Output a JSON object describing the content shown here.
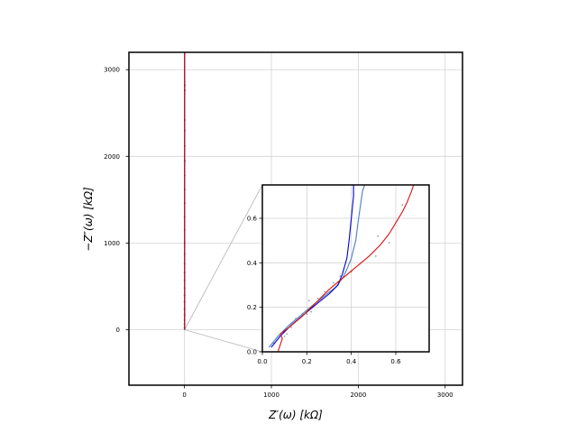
{
  "chart_data": [
    {
      "type": "scatter",
      "role": "main",
      "xlabel": "Z′(ω) [kΩ]",
      "ylabel": "−Z″(ω) [kΩ]",
      "xlim": [
        -640,
        3200
      ],
      "ylim": [
        -640,
        3200
      ],
      "xticks": [
        0,
        1000,
        2000,
        3000
      ],
      "yticks": [
        0,
        1000,
        2000,
        3000
      ],
      "xtick_labels": [
        "0",
        "1000",
        "2000",
        "3000"
      ],
      "ytick_labels": [
        "0",
        "1000",
        "2000",
        "3000"
      ],
      "grid": true,
      "series": [
        {
          "kind": "points",
          "color": "#555555",
          "x": [
            0.4,
            0.5,
            0.5,
            0.6,
            0.6,
            0.7,
            0.7,
            0.8,
            0.8,
            0.9,
            1.0,
            1.1,
            1.2,
            1.2,
            1.3,
            1.4,
            1.5,
            1.6,
            1.8,
            2.0,
            2.2,
            2.4,
            2.6,
            2.8
          ],
          "y": [
            20,
            60,
            110,
            170,
            240,
            320,
            400,
            480,
            570,
            660,
            760,
            870,
            1000,
            1150,
            1300,
            1460,
            1620,
            1780,
            1950,
            2120,
            2300,
            2420,
            2760,
            2820
          ]
        },
        {
          "kind": "line",
          "color": "#3a6db5",
          "x": [
            0.05,
            0.3,
            0.5,
            0.5,
            0.55
          ],
          "y": [
            0.0,
            0.3,
            0.6,
            1500,
            3200
          ]
        },
        {
          "kind": "line",
          "color": "#0000cc",
          "x": [
            0.06,
            0.3,
            0.42,
            0.42,
            0.45
          ],
          "y": [
            0.0,
            0.28,
            0.6,
            1500,
            3200
          ]
        },
        {
          "kind": "line",
          "color": "#dd1111",
          "x": [
            0.1,
            0.3,
            0.6,
            0.9,
            1.0
          ],
          "y": [
            0.0,
            0.3,
            0.6,
            1500,
            3200
          ]
        }
      ]
    },
    {
      "type": "line",
      "role": "inset",
      "xlim": [
        0.0,
        0.75
      ],
      "ylim": [
        0.0,
        0.75
      ],
      "xticks": [
        0.0,
        0.2,
        0.4,
        0.6
      ],
      "yticks": [
        0.0,
        0.2,
        0.4,
        0.6
      ],
      "xtick_labels": [
        "0.0",
        "0.2",
        "0.4",
        "0.6"
      ],
      "ytick_labels": [
        "0.0",
        "0.2",
        "0.4",
        "0.6"
      ],
      "grid": true,
      "series": [
        {
          "kind": "points",
          "color": "#999999",
          "x": [
            0.0,
            0.05,
            0.1,
            0.11,
            0.13,
            0.15,
            0.18,
            0.2,
            0.22,
            0.21,
            0.25,
            0.28,
            0.32,
            0.35,
            0.4,
            0.51,
            0.52,
            0.57,
            0.63
          ],
          "y": [
            0.18,
            0.04,
            0.07,
            0.08,
            0.11,
            0.15,
            0.17,
            0.17,
            0.18,
            0.23,
            0.24,
            0.27,
            0.31,
            0.34,
            0.36,
            0.43,
            0.52,
            0.49,
            0.66
          ]
        },
        {
          "kind": "line",
          "color": "#4a7fc0",
          "x": [
            0.03,
            0.07,
            0.12,
            0.18,
            0.24,
            0.29,
            0.33,
            0.36,
            0.38,
            0.4,
            0.42,
            0.43,
            0.44,
            0.45,
            0.46
          ],
          "y": [
            0.02,
            0.07,
            0.12,
            0.17,
            0.22,
            0.26,
            0.29,
            0.33,
            0.37,
            0.42,
            0.5,
            0.58,
            0.65,
            0.72,
            0.75
          ]
        },
        {
          "kind": "line",
          "color": "#0000cc",
          "x": [
            0.04,
            0.08,
            0.13,
            0.19,
            0.25,
            0.3,
            0.34,
            0.36,
            0.38,
            0.39,
            0.4,
            0.41,
            0.41
          ],
          "y": [
            0.02,
            0.07,
            0.12,
            0.17,
            0.22,
            0.26,
            0.3,
            0.35,
            0.42,
            0.5,
            0.6,
            0.7,
            0.75
          ]
        },
        {
          "kind": "line",
          "color": "#dd1111",
          "x": [
            0.07,
            0.09,
            0.08,
            0.12,
            0.18,
            0.24,
            0.3,
            0.36,
            0.42,
            0.48,
            0.53,
            0.57,
            0.6,
            0.63,
            0.65,
            0.67,
            0.68
          ],
          "y": [
            0.0,
            0.06,
            0.08,
            0.11,
            0.16,
            0.22,
            0.28,
            0.33,
            0.38,
            0.43,
            0.48,
            0.53,
            0.58,
            0.63,
            0.67,
            0.72,
            0.75
          ]
        }
      ]
    }
  ],
  "colors": {
    "grid": "#d3d3d3",
    "axes": "#000000",
    "connector": "#bbbbbb"
  }
}
